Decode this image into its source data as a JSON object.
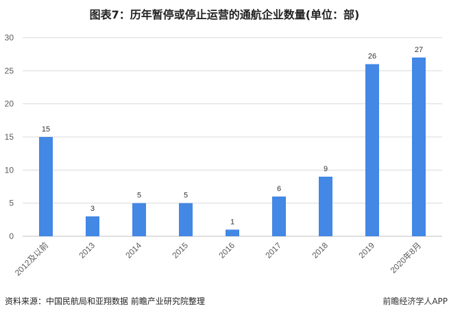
{
  "chart_data": {
    "type": "bar",
    "title": "图表7：历年暂停或停止运营的通航企业数量(单位：部)",
    "categories": [
      "2012及以前",
      "2013",
      "2014",
      "2015",
      "2016",
      "2017",
      "2018",
      "2019",
      "2020年8月"
    ],
    "values": [
      15,
      3,
      5,
      5,
      1,
      6,
      9,
      26,
      27
    ],
    "xlabel": "",
    "ylabel": "",
    "ylim": [
      0,
      30
    ],
    "yticks": [
      0,
      5,
      10,
      15,
      20,
      25,
      30
    ],
    "grid": true,
    "bar_color": "#4288e4"
  },
  "footer": {
    "source": "资料来源：中国民航局和亚翔数据 前瞻产业研究院整理",
    "brand": "前瞻经济学人APP"
  }
}
